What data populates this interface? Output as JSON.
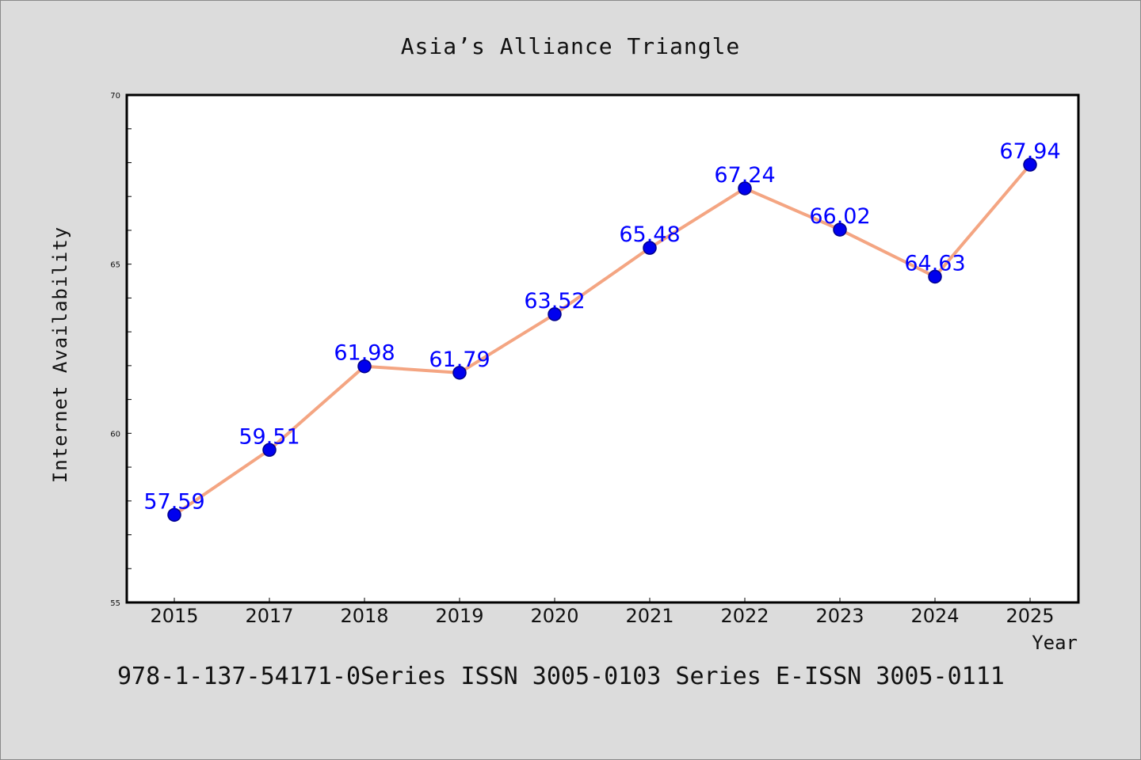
{
  "chart_data": {
    "type": "line",
    "title": "Asia’s Alliance Triangle",
    "xlabel": "Year",
    "ylabel": "Internet Availability",
    "categories": [
      "2015",
      "2017",
      "2018",
      "2019",
      "2020",
      "2021",
      "2022",
      "2023",
      "2024",
      "2025"
    ],
    "series": [
      {
        "values": [
          57.59,
          59.51,
          61.98,
          61.79,
          63.52,
          65.48,
          67.24,
          66.02,
          64.63,
          67.94
        ],
        "labels": [
          "57.59",
          "59.51",
          "61.98",
          "61.79",
          "63.52",
          "65.48",
          "67.24",
          "66.02",
          "64.63",
          "67.94"
        ],
        "color": "#f4a582",
        "marker_color": "#0000ee"
      }
    ],
    "ylim": [
      55,
      70
    ],
    "yticks": [
      "55",
      "60",
      "65",
      "70"
    ],
    "grid": false,
    "legend": "none",
    "label_color": "#0000ff",
    "background": "#dcdcdc"
  },
  "footer": {
    "text": "978-1-137-54171-0Series ISSN 3005-0103 Series E-ISSN 3005-0111"
  }
}
